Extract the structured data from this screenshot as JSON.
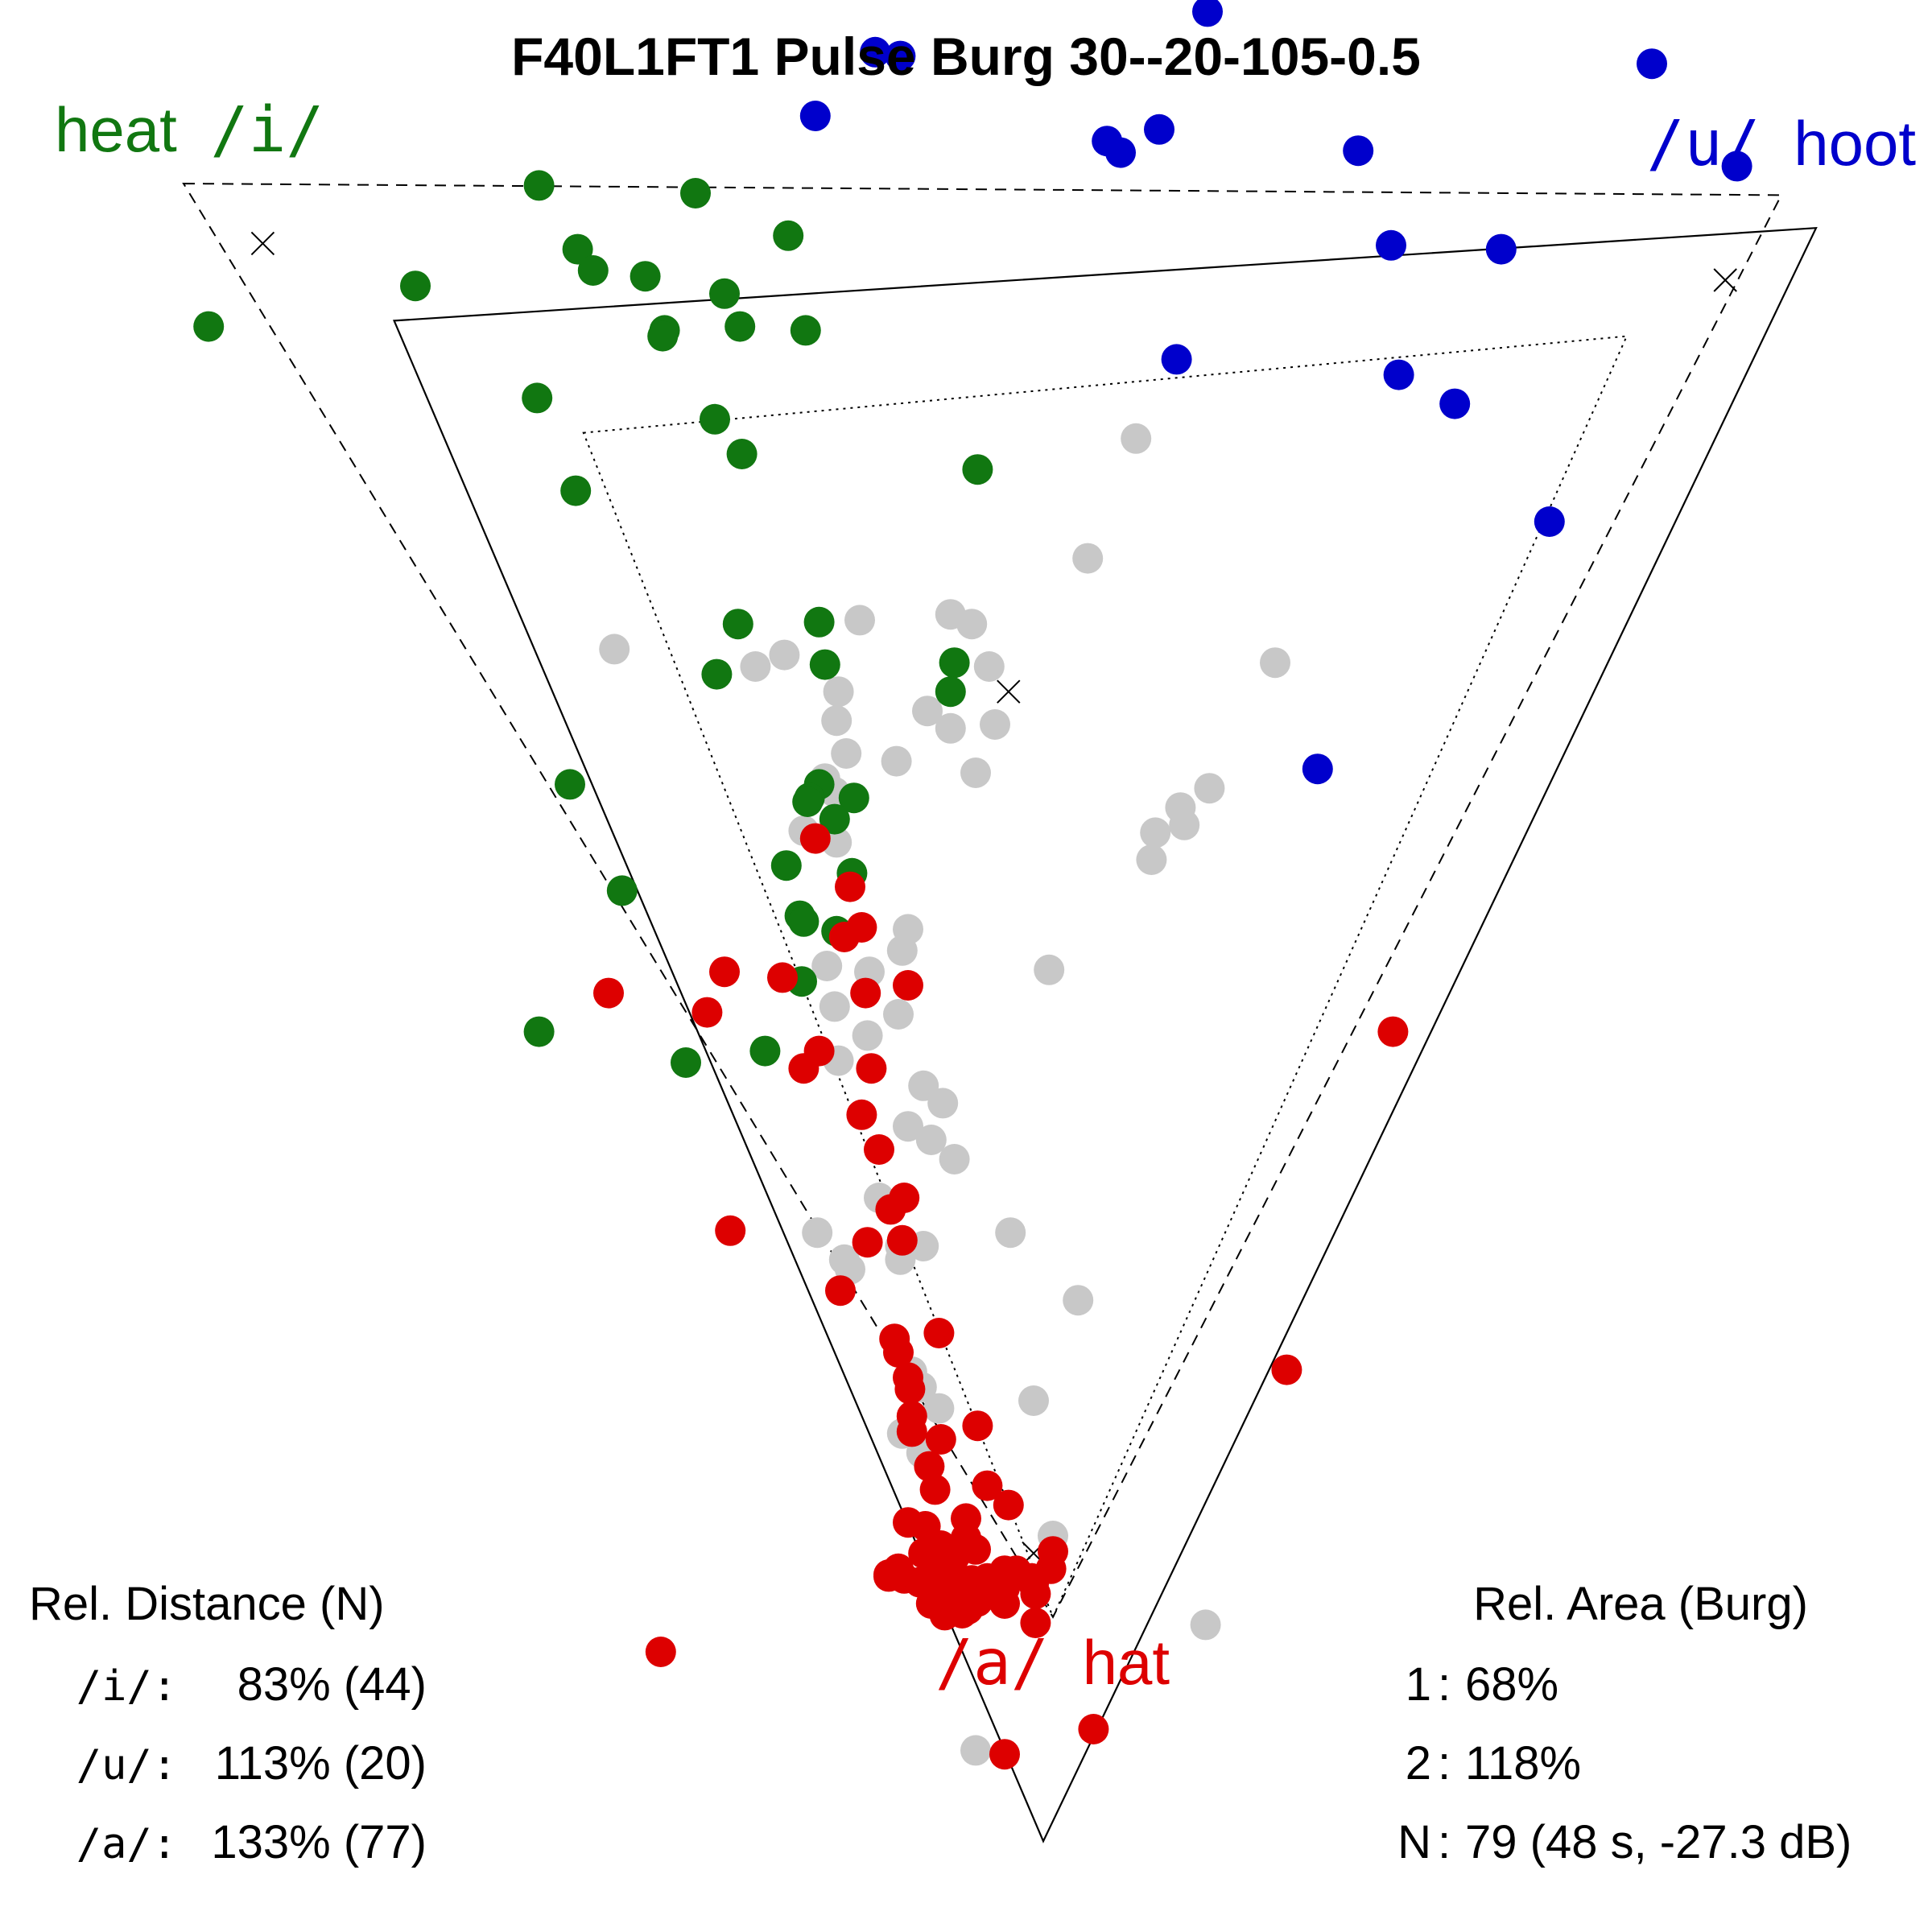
{
  "chart_data": {
    "type": "scatter",
    "title": "F40L1FT1 Pulse Burg 30--20-105-0.5",
    "vowel_labels": {
      "i": {
        "ipa": "/i/",
        "word": "heat",
        "color": "#117711"
      },
      "u": {
        "ipa": "/u/",
        "word": "hoot",
        "color": "#0000cc"
      },
      "a": {
        "ipa": "/a/",
        "word": "hat",
        "color": "#dd0000"
      }
    },
    "triangles": {
      "dashed": [
        [
          0.095,
          0.095
        ],
        [
          0.922,
          0.101
        ],
        [
          0.545,
          0.837
        ]
      ],
      "solid": [
        [
          0.204,
          0.166
        ],
        [
          0.94,
          0.118
        ],
        [
          0.54,
          0.953
        ]
      ],
      "dotted": [
        [
          0.302,
          0.224
        ],
        [
          0.842,
          0.174
        ],
        [
          0.545,
          0.837
        ]
      ]
    },
    "centers": [
      [
        0.136,
        0.126
      ],
      [
        0.893,
        0.145
      ],
      [
        0.522,
        0.358
      ],
      [
        0.535,
        0.804
      ]
    ],
    "series": [
      {
        "name": "/i/",
        "color": "#117711",
        "points": [
          [
            0.279,
            0.096
          ],
          [
            0.36,
            0.1
          ],
          [
            0.408,
            0.122
          ],
          [
            0.299,
            0.129
          ],
          [
            0.307,
            0.14
          ],
          [
            0.215,
            0.148
          ],
          [
            0.334,
            0.143
          ],
          [
            0.375,
            0.152
          ],
          [
            0.108,
            0.169
          ],
          [
            0.344,
            0.171
          ],
          [
            0.383,
            0.169
          ],
          [
            0.343,
            0.174
          ],
          [
            0.417,
            0.171
          ],
          [
            0.278,
            0.206
          ],
          [
            0.37,
            0.217
          ],
          [
            0.384,
            0.235
          ],
          [
            0.506,
            0.243
          ],
          [
            0.298,
            0.254
          ],
          [
            0.382,
            0.323
          ],
          [
            0.424,
            0.322
          ],
          [
            0.371,
            0.349
          ],
          [
            0.427,
            0.344
          ],
          [
            0.494,
            0.343
          ],
          [
            0.492,
            0.358
          ],
          [
            0.295,
            0.406
          ],
          [
            0.424,
            0.406
          ],
          [
            0.442,
            0.413
          ],
          [
            0.419,
            0.413
          ],
          [
            0.418,
            0.415
          ],
          [
            0.432,
            0.424
          ],
          [
            0.322,
            0.461
          ],
          [
            0.407,
            0.448
          ],
          [
            0.441,
            0.452
          ],
          [
            0.414,
            0.474
          ],
          [
            0.416,
            0.477
          ],
          [
            0.433,
            0.482
          ],
          [
            0.415,
            0.508
          ],
          [
            0.279,
            0.534
          ],
          [
            0.355,
            0.55
          ],
          [
            0.396,
            0.544
          ]
        ]
      },
      {
        "name": "/u/",
        "color": "#0000cc",
        "points": [
          [
            0.625,
            0.006
          ],
          [
            0.453,
            0.027
          ],
          [
            0.466,
            0.029
          ],
          [
            0.855,
            0.033
          ],
          [
            0.422,
            0.06
          ],
          [
            0.6,
            0.067
          ],
          [
            0.573,
            0.073
          ],
          [
            0.58,
            0.079
          ],
          [
            0.703,
            0.078
          ],
          [
            0.899,
            0.086
          ],
          [
            0.72,
            0.127
          ],
          [
            0.777,
            0.129
          ],
          [
            0.609,
            0.186
          ],
          [
            0.724,
            0.194
          ],
          [
            0.753,
            0.209
          ],
          [
            0.802,
            0.27
          ],
          [
            0.682,
            0.398
          ]
        ]
      },
      {
        "name": "/a/",
        "color": "#dd0000",
        "points": [
          [
            0.422,
            0.434
          ],
          [
            0.44,
            0.459
          ],
          [
            0.446,
            0.48
          ],
          [
            0.437,
            0.485
          ],
          [
            0.375,
            0.503
          ],
          [
            0.405,
            0.506
          ],
          [
            0.448,
            0.514
          ],
          [
            0.47,
            0.51
          ],
          [
            0.315,
            0.514
          ],
          [
            0.366,
            0.524
          ],
          [
            0.424,
            0.544
          ],
          [
            0.416,
            0.553
          ],
          [
            0.451,
            0.553
          ],
          [
            0.446,
            0.577
          ],
          [
            0.455,
            0.595
          ],
          [
            0.468,
            0.62
          ],
          [
            0.461,
            0.626
          ],
          [
            0.378,
            0.637
          ],
          [
            0.449,
            0.643
          ],
          [
            0.467,
            0.642
          ],
          [
            0.435,
            0.668
          ],
          [
            0.721,
            0.534
          ],
          [
            0.463,
            0.693
          ],
          [
            0.486,
            0.69
          ],
          [
            0.465,
            0.7
          ],
          [
            0.47,
            0.713
          ],
          [
            0.471,
            0.719
          ],
          [
            0.472,
            0.733
          ],
          [
            0.506,
            0.738
          ],
          [
            0.472,
            0.741
          ],
          [
            0.487,
            0.745
          ],
          [
            0.481,
            0.759
          ],
          [
            0.484,
            0.771
          ],
          [
            0.511,
            0.769
          ],
          [
            0.522,
            0.779
          ],
          [
            0.47,
            0.788
          ],
          [
            0.479,
            0.79
          ],
          [
            0.5,
            0.786
          ],
          [
            0.5,
            0.796
          ],
          [
            0.487,
            0.8
          ],
          [
            0.478,
            0.804
          ],
          [
            0.494,
            0.806
          ],
          [
            0.505,
            0.802
          ],
          [
            0.465,
            0.812
          ],
          [
            0.491,
            0.81
          ],
          [
            0.52,
            0.813
          ],
          [
            0.545,
            0.803
          ],
          [
            0.46,
            0.815
          ],
          [
            0.468,
            0.817
          ],
          [
            0.476,
            0.819
          ],
          [
            0.485,
            0.813
          ],
          [
            0.49,
            0.82
          ],
          [
            0.497,
            0.822
          ],
          [
            0.503,
            0.818
          ],
          [
            0.511,
            0.817
          ],
          [
            0.52,
            0.822
          ],
          [
            0.526,
            0.813
          ],
          [
            0.46,
            0.816
          ],
          [
            0.486,
            0.827
          ],
          [
            0.497,
            0.826
          ],
          [
            0.505,
            0.829
          ],
          [
            0.516,
            0.825
          ],
          [
            0.535,
            0.82
          ],
          [
            0.544,
            0.812
          ],
          [
            0.534,
            0.817
          ],
          [
            0.482,
            0.83
          ],
          [
            0.49,
            0.832
          ],
          [
            0.498,
            0.835
          ],
          [
            0.506,
            0.829
          ],
          [
            0.514,
            0.82
          ],
          [
            0.52,
            0.83
          ],
          [
            0.489,
            0.836
          ],
          [
            0.501,
            0.833
          ],
          [
            0.536,
            0.825
          ],
          [
            0.536,
            0.84
          ],
          [
            0.342,
            0.855
          ],
          [
            0.52,
            0.908
          ],
          [
            0.566,
            0.895
          ],
          [
            0.666,
            0.709
          ]
        ]
      },
      {
        "name": "other",
        "color": "#c8c8c8",
        "points": [
          [
            0.588,
            0.227
          ],
          [
            0.563,
            0.289
          ],
          [
            0.445,
            0.321
          ],
          [
            0.492,
            0.318
          ],
          [
            0.503,
            0.323
          ],
          [
            0.318,
            0.336
          ],
          [
            0.391,
            0.345
          ],
          [
            0.406,
            0.339
          ],
          [
            0.512,
            0.345
          ],
          [
            0.66,
            0.343
          ],
          [
            0.434,
            0.358
          ],
          [
            0.48,
            0.368
          ],
          [
            0.433,
            0.373
          ],
          [
            0.492,
            0.377
          ],
          [
            0.515,
            0.375
          ],
          [
            0.438,
            0.39
          ],
          [
            0.464,
            0.394
          ],
          [
            0.505,
            0.4
          ],
          [
            0.626,
            0.408
          ],
          [
            0.611,
            0.418
          ],
          [
            0.613,
            0.427
          ],
          [
            0.598,
            0.431
          ],
          [
            0.596,
            0.445
          ],
          [
            0.427,
            0.403
          ],
          [
            0.432,
            0.41
          ],
          [
            0.416,
            0.43
          ],
          [
            0.433,
            0.436
          ],
          [
            0.47,
            0.481
          ],
          [
            0.467,
            0.492
          ],
          [
            0.428,
            0.5
          ],
          [
            0.45,
            0.503
          ],
          [
            0.432,
            0.521
          ],
          [
            0.465,
            0.525
          ],
          [
            0.449,
            0.536
          ],
          [
            0.543,
            0.502
          ],
          [
            0.434,
            0.549
          ],
          [
            0.478,
            0.562
          ],
          [
            0.488,
            0.571
          ],
          [
            0.47,
            0.583
          ],
          [
            0.482,
            0.59
          ],
          [
            0.494,
            0.6
          ],
          [
            0.455,
            0.62
          ],
          [
            0.423,
            0.638
          ],
          [
            0.523,
            0.638
          ],
          [
            0.466,
            0.645
          ],
          [
            0.478,
            0.645
          ],
          [
            0.437,
            0.652
          ],
          [
            0.44,
            0.657
          ],
          [
            0.466,
            0.652
          ],
          [
            0.558,
            0.673
          ],
          [
            0.472,
            0.71
          ],
          [
            0.477,
            0.718
          ],
          [
            0.535,
            0.725
          ],
          [
            0.486,
            0.729
          ],
          [
            0.467,
            0.742
          ],
          [
            0.477,
            0.752
          ],
          [
            0.545,
            0.795
          ],
          [
            0.624,
            0.841
          ],
          [
            0.505,
            0.906
          ]
        ]
      }
    ],
    "rel_distance": {
      "heading": "Rel. Distance (N)",
      "rows": [
        {
          "label": "/i/:",
          "value": "83% (44)"
        },
        {
          "label": "/u/:",
          "value": "113% (20)"
        },
        {
          "label": "/a/:",
          "value": "133% (77)"
        }
      ]
    },
    "rel_area": {
      "heading": "Rel. Area (Burg)",
      "rows": [
        {
          "label": "1",
          "value": "68%"
        },
        {
          "label": "2",
          "value": "118%"
        },
        {
          "label": "N",
          "value": "79 (48 s, -27.3 dB)"
        }
      ]
    }
  }
}
